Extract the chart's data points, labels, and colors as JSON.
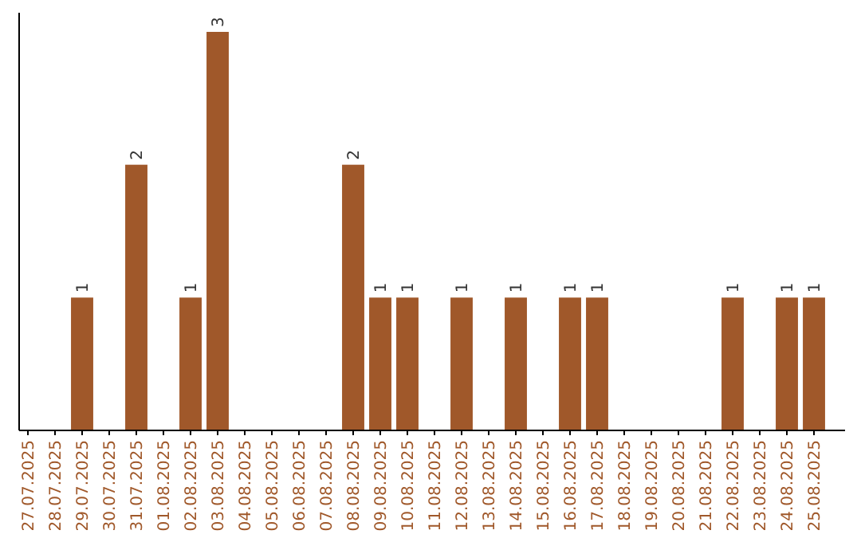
{
  "chart_data": {
    "type": "bar",
    "categories": [
      "27.07.2025",
      "28.07.2025",
      "29.07.2025",
      "30.07.2025",
      "31.07.2025",
      "01.08.2025",
      "02.08.2025",
      "03.08.2025",
      "04.08.2025",
      "05.08.2025",
      "06.08.2025",
      "07.08.2025",
      "08.08.2025",
      "09.08.2025",
      "10.08.2025",
      "11.08.2025",
      "12.08.2025",
      "13.08.2025",
      "14.08.2025",
      "15.08.2025",
      "16.08.2025",
      "17.08.2025",
      "18.08.2025",
      "19.08.2025",
      "20.08.2025",
      "21.08.2025",
      "22.08.2025",
      "23.08.2025",
      "24.08.2025",
      "25.08.2025"
    ],
    "values": [
      0,
      0,
      1,
      0,
      2,
      0,
      1,
      3,
      0,
      0,
      0,
      0,
      2,
      1,
      1,
      0,
      1,
      0,
      1,
      0,
      1,
      1,
      0,
      0,
      0,
      0,
      1,
      0,
      1,
      1
    ],
    "value_labels": [
      null,
      null,
      "1",
      null,
      "2",
      null,
      "1",
      "3",
      null,
      null,
      null,
      null,
      "2",
      "1",
      "1",
      null,
      "1",
      null,
      "1",
      null,
      "1",
      "1",
      null,
      null,
      null,
      null,
      "1",
      null,
      "1",
      "1"
    ],
    "color": "#a0582a",
    "ylim": [
      0,
      3
    ],
    "tick_labels": "x"
  }
}
